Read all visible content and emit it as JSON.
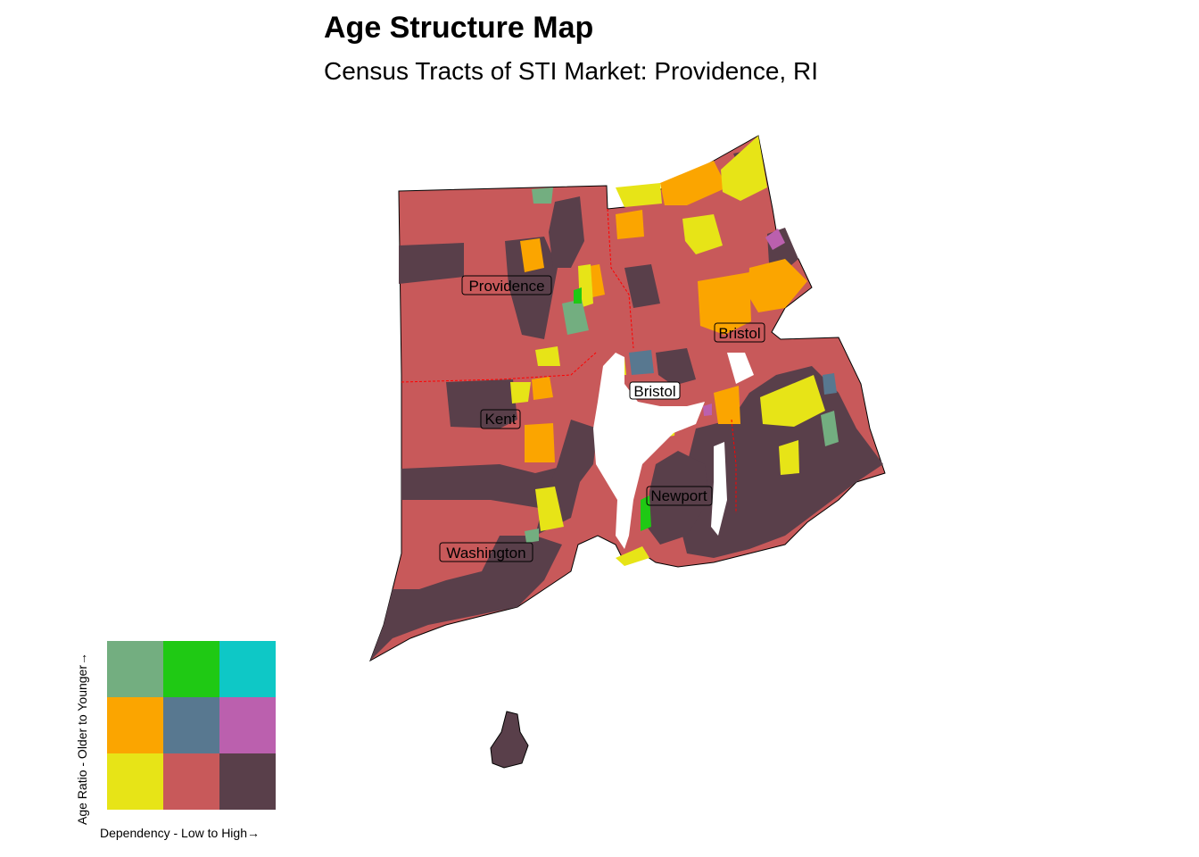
{
  "title": "Age Structure Map",
  "subtitle": "Census Tracts of STI Market: Providence, RI",
  "counties": [
    {
      "name": "Providence"
    },
    {
      "name": "Bristol"
    },
    {
      "name": "Bristol"
    },
    {
      "name": "Kent"
    },
    {
      "name": "Newport"
    },
    {
      "name": "Washington"
    }
  ],
  "legend": {
    "x_label": "Dependency - Low to High→",
    "y_label": "Age Ratio - Older to Younger→",
    "colors": [
      [
        "#73ae80",
        "#1fc914",
        "#0ec8c6"
      ],
      [
        "#fba500",
        "#587890",
        "#bb60ae"
      ],
      [
        "#e7e417",
        "#c8595a",
        "#593f4a"
      ]
    ]
  },
  "palette": {
    "low_low": "#e7e417",
    "mid_low": "#c8595a",
    "high_low": "#593f4a",
    "low_mid": "#fba500",
    "mid_mid": "#587890",
    "high_mid": "#bb60ae",
    "low_high": "#73ae80",
    "mid_high": "#1fc914",
    "high_high": "#0ec8c6",
    "county_border": "#ff0000"
  }
}
